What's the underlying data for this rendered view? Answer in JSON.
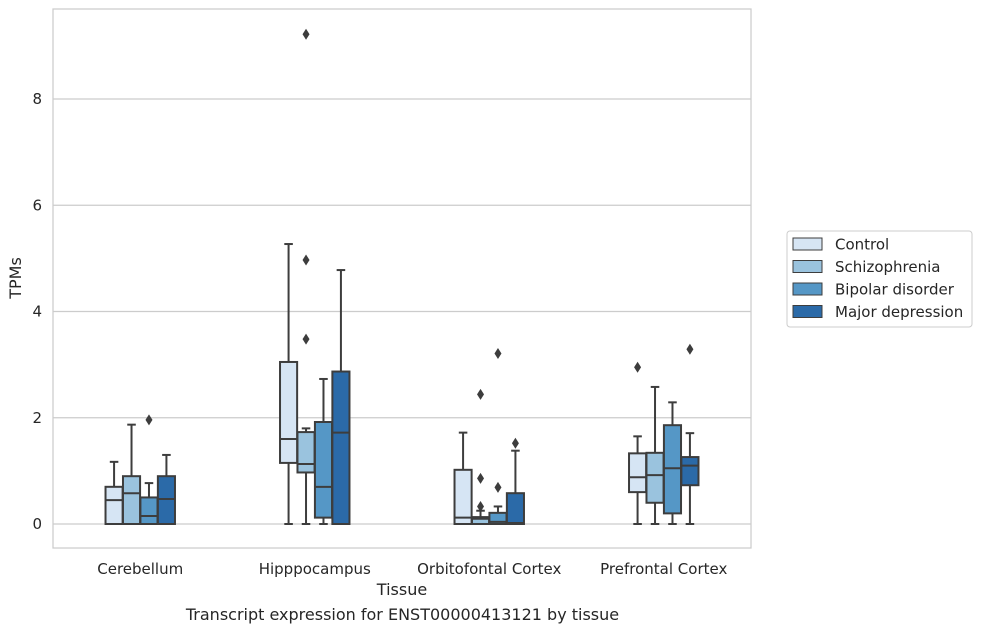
{
  "caption": "Transcript expression for ENST00000413121 by tissue",
  "chart_data": {
    "type": "box",
    "xlabel": "Tissue",
    "ylabel": "TPMs",
    "ylim": [
      -0.45,
      9.6
    ],
    "yticks": [
      0,
      2,
      4,
      6,
      8
    ],
    "grid": "horizontal",
    "legend_position": "right",
    "categories": [
      "Cerebellum",
      "Hipppocampus",
      "Orbitofontal Cortex",
      "Prefrontal Cortex"
    ],
    "series": [
      {
        "name": "Control",
        "color": "#d6e5f4",
        "boxes": [
          {
            "whisker_low": 0,
            "q1": 0,
            "median": 0.45,
            "q3": 0.7,
            "whisker_high": 1.17,
            "outliers": []
          },
          {
            "whisker_low": 0,
            "q1": 1.15,
            "median": 1.6,
            "q3": 3.05,
            "whisker_high": 5.27,
            "outliers": []
          },
          {
            "whisker_low": 0,
            "q1": 0,
            "median": 0.12,
            "q3": 1.02,
            "whisker_high": 1.72,
            "outliers": []
          },
          {
            "whisker_low": 0,
            "q1": 0.6,
            "median": 0.88,
            "q3": 1.33,
            "whisker_high": 1.65,
            "outliers": [
              2.95
            ]
          }
        ]
      },
      {
        "name": "Schizophrenia",
        "color": "#9ac3de",
        "boxes": [
          {
            "whisker_low": 0,
            "q1": 0,
            "median": 0.58,
            "q3": 0.9,
            "whisker_high": 1.87,
            "outliers": []
          },
          {
            "whisker_low": 0,
            "q1": 0.97,
            "median": 1.13,
            "q3": 1.73,
            "whisker_high": 1.8,
            "outliers": [
              3.48,
              4.97,
              9.22
            ]
          },
          {
            "whisker_low": 0,
            "q1": 0,
            "median": 0.1,
            "q3": 0.13,
            "whisker_high": 0.25,
            "outliers": [
              0.33,
              0.86,
              2.44
            ]
          },
          {
            "whisker_low": 0,
            "q1": 0.4,
            "median": 0.92,
            "q3": 1.34,
            "whisker_high": 2.58,
            "outliers": []
          }
        ]
      },
      {
        "name": "Bipolar disorder",
        "color": "#5597c6",
        "boxes": [
          {
            "whisker_low": 0,
            "q1": 0,
            "median": 0.15,
            "q3": 0.5,
            "whisker_high": 0.77,
            "outliers": [
              1.96
            ]
          },
          {
            "whisker_low": 0,
            "q1": 0.12,
            "median": 0.7,
            "q3": 1.92,
            "whisker_high": 2.73,
            "outliers": []
          },
          {
            "whisker_low": 0,
            "q1": 0,
            "median": 0.04,
            "q3": 0.21,
            "whisker_high": 0.33,
            "outliers": [
              0.69,
              3.21
            ]
          },
          {
            "whisker_low": 0,
            "q1": 0.2,
            "median": 1.05,
            "q3": 1.86,
            "whisker_high": 2.29,
            "outliers": []
          }
        ]
      },
      {
        "name": "Major depression",
        "color": "#2b6aa8",
        "boxes": [
          {
            "whisker_low": 0,
            "q1": 0,
            "median": 0.47,
            "q3": 0.9,
            "whisker_high": 1.3,
            "outliers": []
          },
          {
            "whisker_low": 0,
            "q1": 0,
            "median": 1.72,
            "q3": 2.87,
            "whisker_high": 4.78,
            "outliers": []
          },
          {
            "whisker_low": 0,
            "q1": 0,
            "median": 0.02,
            "q3": 0.58,
            "whisker_high": 1.38,
            "outliers": [
              1.52
            ]
          },
          {
            "whisker_low": 0,
            "q1": 0.73,
            "median": 1.1,
            "q3": 1.26,
            "whisker_high": 1.71,
            "outliers": [
              3.29
            ]
          }
        ]
      }
    ]
  }
}
